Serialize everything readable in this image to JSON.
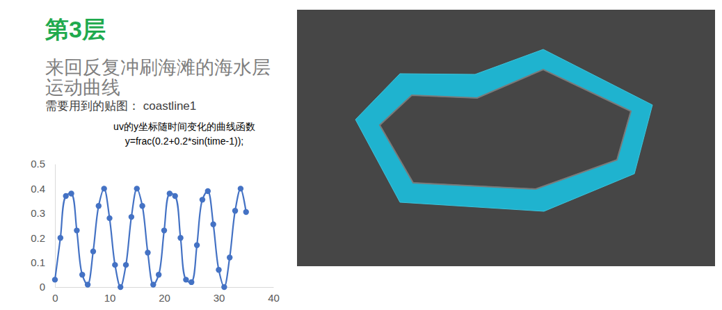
{
  "slide": {
    "heading": "第3层",
    "subtitle_lines": [
      "来回反复冲刷海滩的海水层",
      "运动曲线"
    ],
    "texture_note": "需要用到的贴图： coastline1"
  },
  "chart_data": {
    "type": "line",
    "title": "uv的y坐标随时间变化的曲线函数",
    "subtitle": "y=frac(0.2+0.2*sin(time-1));",
    "x": [
      0,
      1,
      2,
      3,
      4,
      5,
      6,
      7,
      8,
      9,
      10,
      11,
      12,
      13,
      14,
      15,
      16,
      17,
      18,
      19,
      20,
      21,
      22,
      23,
      24,
      25,
      26,
      27,
      28,
      29,
      30,
      31,
      32,
      33,
      34,
      35
    ],
    "values": [
      0.03,
      0.2,
      0.37,
      0.38,
      0.23,
      0.05,
      0.01,
      0.145,
      0.33,
      0.4,
      0.28,
      0.09,
      0.0,
      0.09,
      0.285,
      0.4,
      0.33,
      0.14,
      0.01,
      0.05,
      0.23,
      0.38,
      0.37,
      0.2,
      0.03,
      0.02,
      0.17,
      0.355,
      0.39,
      0.255,
      0.07,
      0.0,
      0.12,
      0.31,
      0.4,
      0.305
    ],
    "color": "#4472c4",
    "marker": "circle",
    "line_style": "smooth",
    "xlim": [
      0,
      40
    ],
    "xticks": [
      0,
      10,
      20,
      30,
      40
    ],
    "ylim": [
      0,
      0.5
    ],
    "yticks": [
      0,
      0.1,
      0.2,
      0.3,
      0.4,
      0.5
    ],
    "grid": false
  }
}
